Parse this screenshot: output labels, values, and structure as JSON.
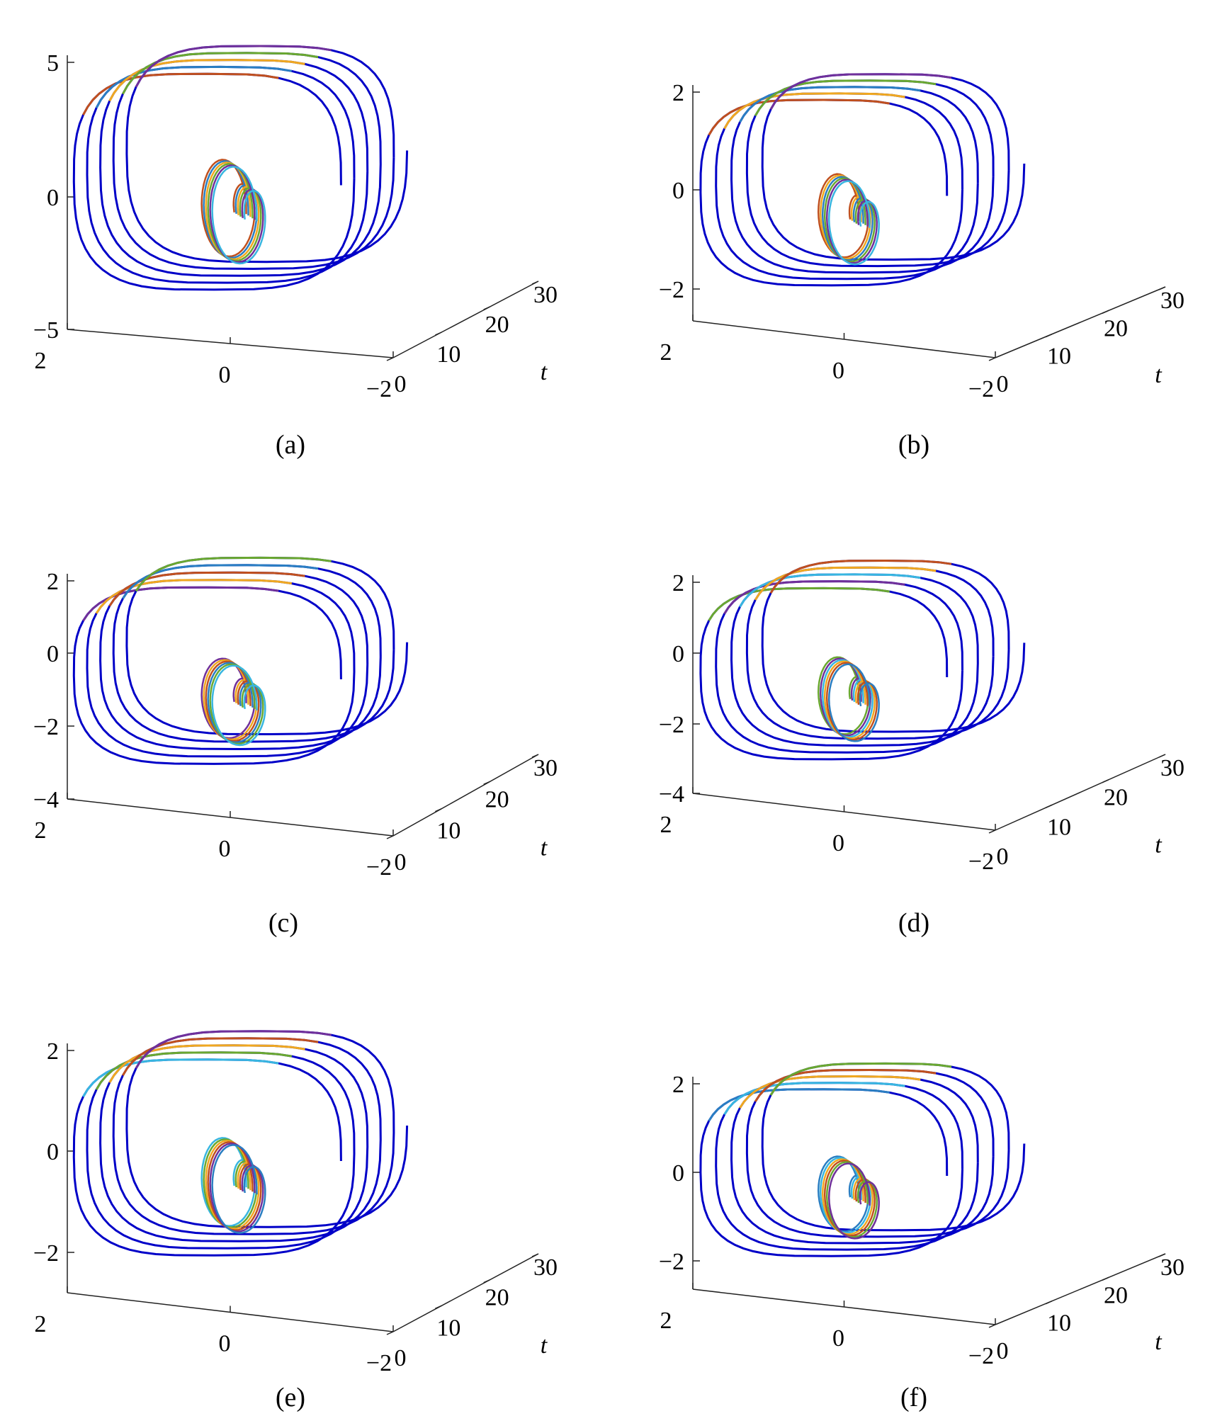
{
  "figure": {
    "panels": [
      {
        "caption": "(a)",
        "z_ticks": [
          "5",
          "0",
          "−5"
        ],
        "x_ticks": [
          "2",
          "0",
          "−2"
        ],
        "t_ticks": [
          "0",
          "10",
          "20",
          "30"
        ],
        "t_label": "t"
      },
      {
        "caption": "(b)",
        "z_ticks": [
          "2",
          "0",
          "−2"
        ],
        "x_ticks": [
          "2",
          "0",
          "−2"
        ],
        "t_ticks": [
          "0",
          "10",
          "20",
          "30"
        ],
        "t_label": "t"
      },
      {
        "caption": "(c)",
        "z_ticks": [
          "2",
          "0",
          "−2",
          "−4"
        ],
        "x_ticks": [
          "2",
          "0",
          "−2"
        ],
        "t_ticks": [
          "0",
          "10",
          "20",
          "30"
        ],
        "t_label": "t"
      },
      {
        "caption": "(d)",
        "z_ticks": [
          "2",
          "0",
          "−2",
          "−4"
        ],
        "x_ticks": [
          "2",
          "0",
          "−2"
        ],
        "t_ticks": [
          "0",
          "10",
          "20",
          "30"
        ],
        "t_label": "t"
      },
      {
        "caption": "(e)",
        "z_ticks": [
          "2",
          "0",
          "−2"
        ],
        "x_ticks": [
          "2",
          "0",
          "−2"
        ],
        "t_ticks": [
          "0",
          "10",
          "20",
          "30"
        ],
        "t_label": "t"
      },
      {
        "caption": "(f)",
        "z_ticks": [
          "2",
          "0",
          "−2"
        ],
        "x_ticks": [
          "2",
          "0",
          "−2"
        ],
        "t_ticks": [
          "0",
          "10",
          "20",
          "30"
        ],
        "t_label": "t"
      }
    ]
  },
  "chart_data": [
    {
      "type": "line",
      "panel": "(a)",
      "axes": [
        "x",
        "t",
        "z"
      ],
      "xlim": [
        -2,
        2
      ],
      "tlim": [
        0,
        30
      ],
      "zlim": [
        -5,
        5
      ],
      "grid": false,
      "legend": "none",
      "series_colors": [
        "#0000c8",
        "#c0501e",
        "#2a7ec2",
        "#f0a820",
        "#6aa830",
        "#70309a",
        "#38b6e0"
      ]
    },
    {
      "type": "line",
      "panel": "(b)",
      "axes": [
        "x",
        "t",
        "z"
      ],
      "xlim": [
        -2,
        2
      ],
      "tlim": [
        0,
        30
      ],
      "zlim": [
        -2.5,
        2.5
      ],
      "grid": false,
      "legend": "none",
      "series_colors": [
        "#0000c8",
        "#c0501e",
        "#f0a820",
        "#2a7ec2",
        "#6aa830",
        "#70309a",
        "#38b6e0"
      ]
    },
    {
      "type": "line",
      "panel": "(c)",
      "axes": [
        "x",
        "t",
        "z"
      ],
      "xlim": [
        -2,
        2
      ],
      "tlim": [
        0,
        30
      ],
      "zlim": [
        -4,
        3
      ],
      "grid": false,
      "legend": "none",
      "series_colors": [
        "#0000c8",
        "#70309a",
        "#f0a820",
        "#c0501e",
        "#2a7ec2",
        "#6aa830",
        "#38b6e0"
      ]
    },
    {
      "type": "line",
      "panel": "(d)",
      "axes": [
        "x",
        "t",
        "z"
      ],
      "xlim": [
        -2,
        2
      ],
      "tlim": [
        0,
        30
      ],
      "zlim": [
        -4,
        3
      ],
      "grid": false,
      "legend": "none",
      "series_colors": [
        "#0000c8",
        "#6aa830",
        "#70309a",
        "#38b6e0",
        "#f0a820",
        "#c0501e",
        "#2a7ec2"
      ]
    },
    {
      "type": "line",
      "panel": "(e)",
      "axes": [
        "x",
        "t",
        "z"
      ],
      "xlim": [
        -2,
        2
      ],
      "tlim": [
        0,
        30
      ],
      "zlim": [
        -3,
        3
      ],
      "grid": false,
      "legend": "none",
      "series_colors": [
        "#0000c8",
        "#38b6e0",
        "#6aa830",
        "#f0a820",
        "#c0501e",
        "#70309a",
        "#2a7ec2"
      ]
    },
    {
      "type": "line",
      "panel": "(f)",
      "axes": [
        "x",
        "t",
        "z"
      ],
      "xlim": [
        -2,
        2
      ],
      "tlim": [
        0,
        30
      ],
      "zlim": [
        -3,
        3
      ],
      "grid": false,
      "legend": "none",
      "series_colors": [
        "#0000c8",
        "#2a7ec2",
        "#38b6e0",
        "#f0a820",
        "#c0501e",
        "#6aa830",
        "#70309a"
      ]
    }
  ]
}
